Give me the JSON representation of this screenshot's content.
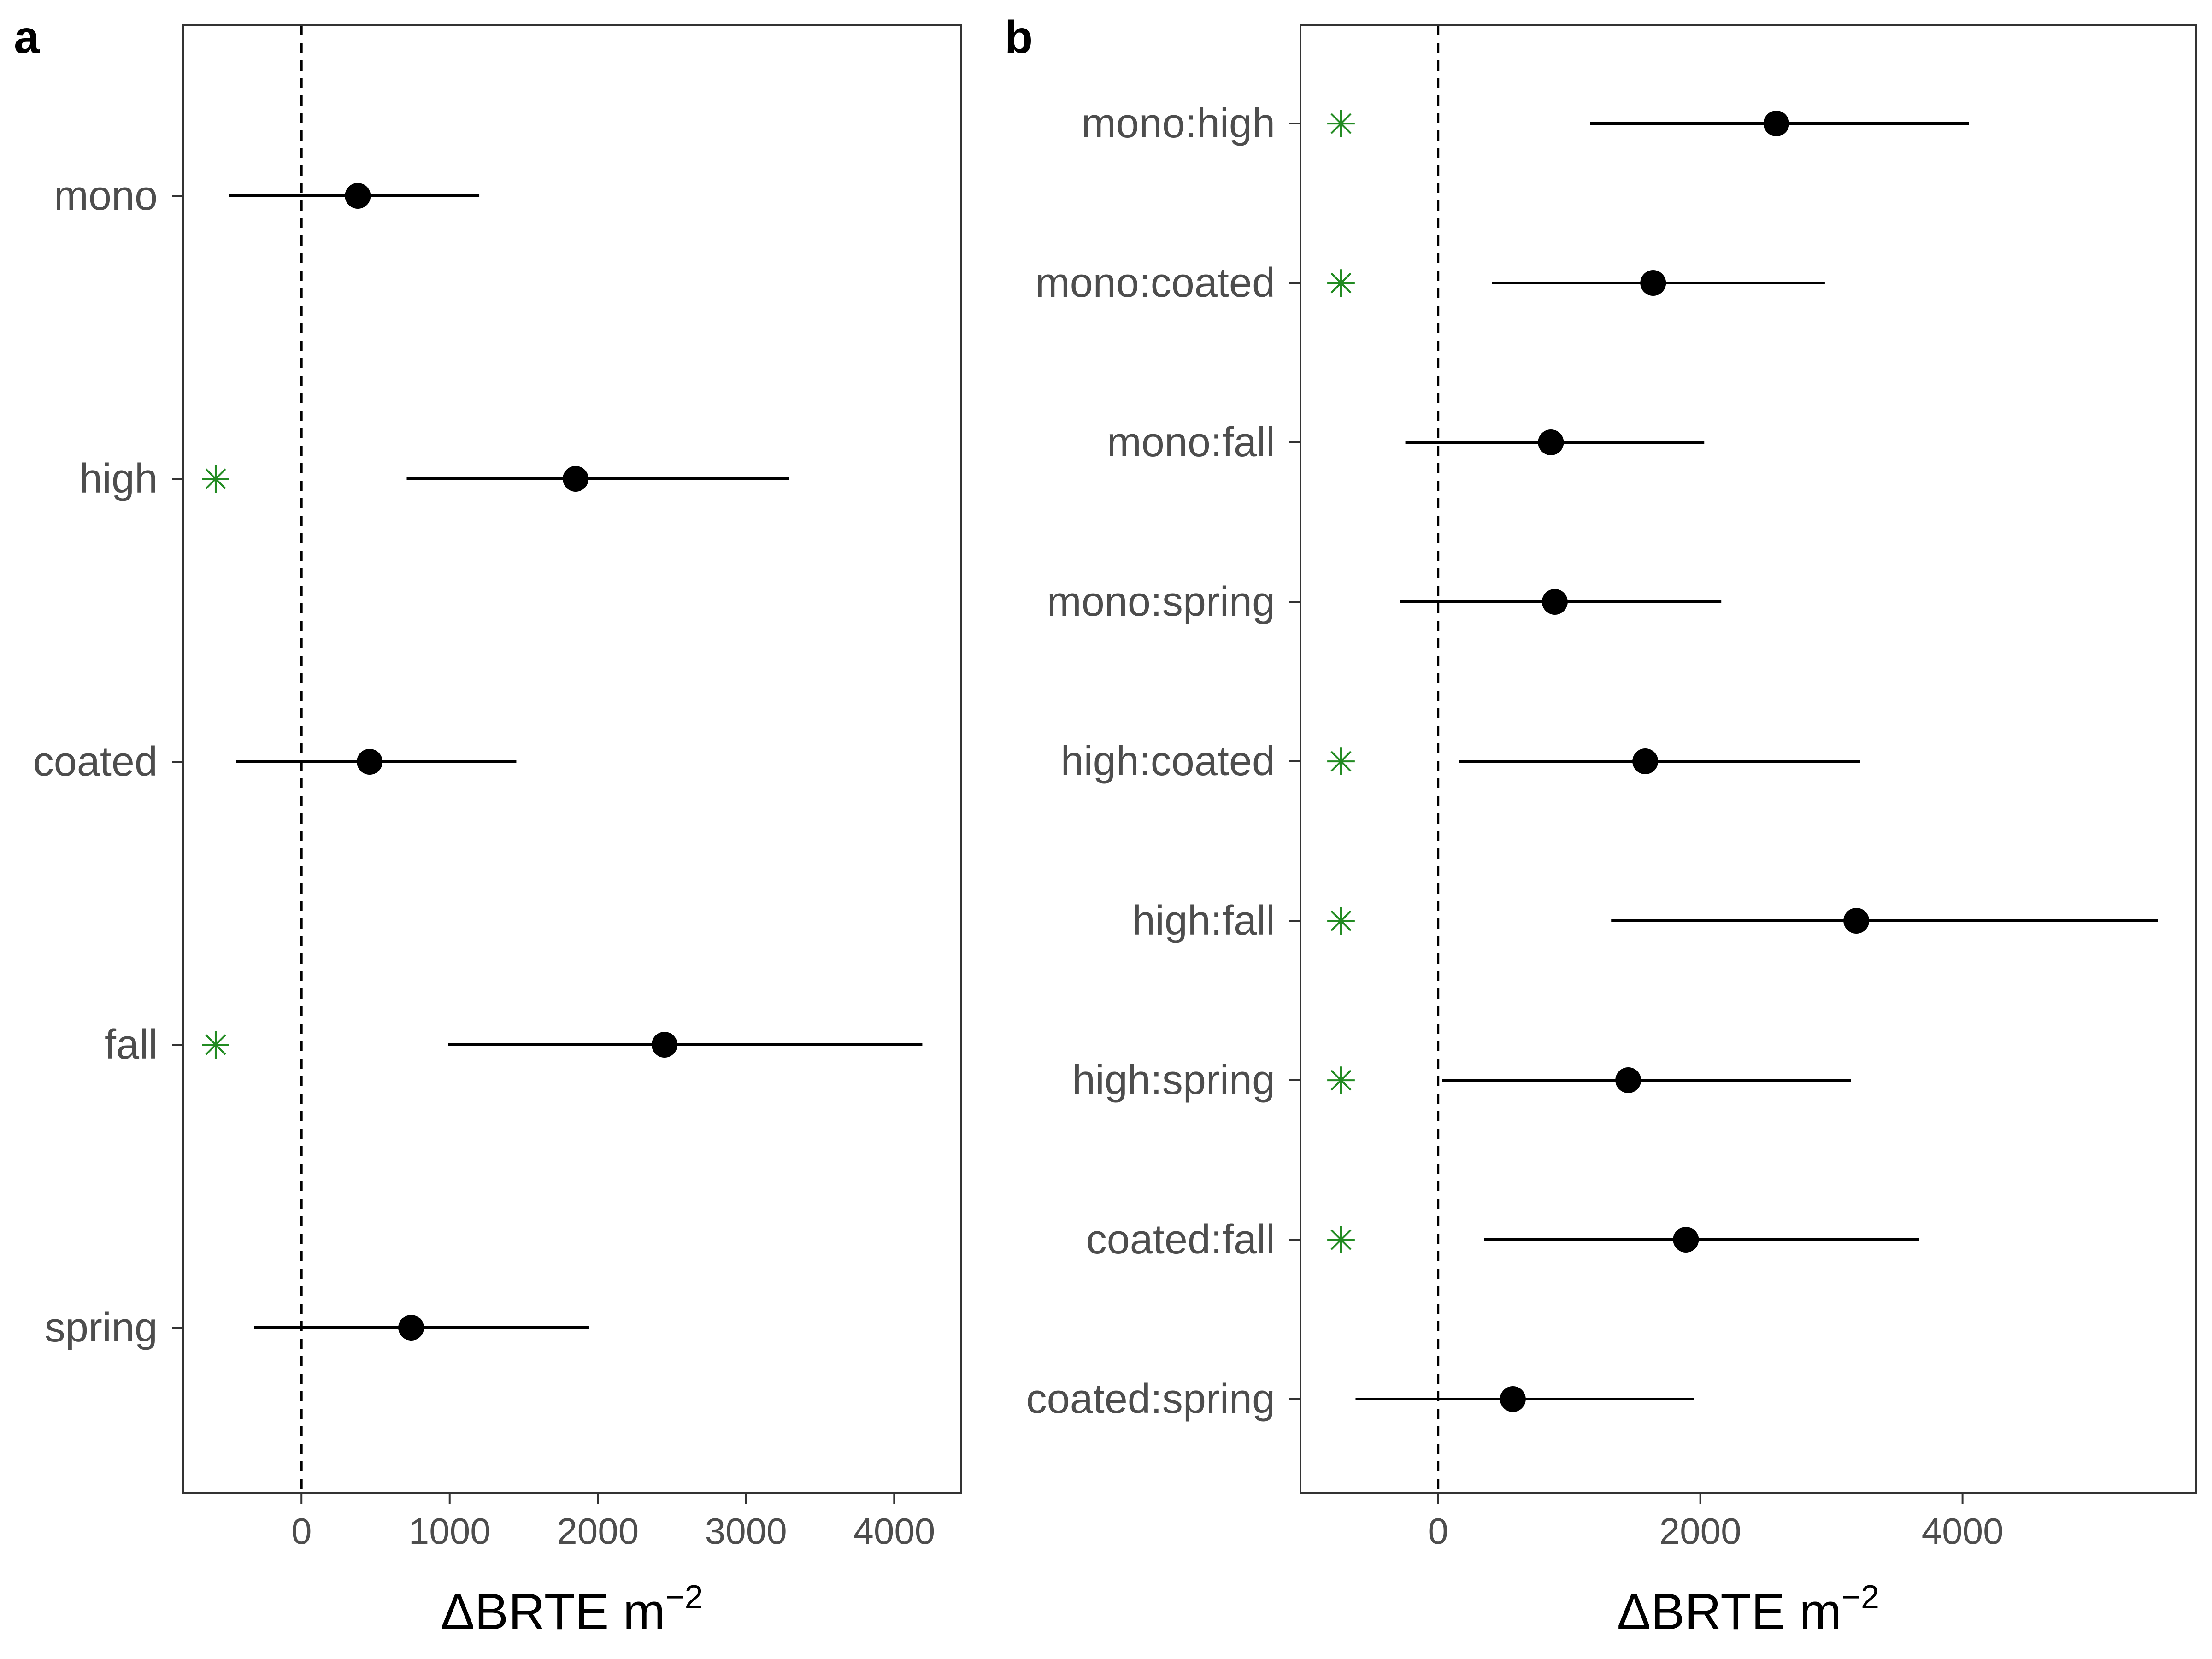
{
  "figure": {
    "background": "#ffffff",
    "point_color": "#000000",
    "marker_color": "#228B22",
    "marker_glyph": "✳"
  },
  "chart_data": [
    {
      "panel": "a",
      "type": "scatter",
      "style": "dot-and-whisker",
      "xlabel": "ΔBRTE m",
      "xlabel_superscript": "−2",
      "xlim": [
        -800,
        4450
      ],
      "xticks": [
        0,
        1000,
        2000,
        3000,
        4000
      ],
      "xtick_labels": [
        "0",
        "1000",
        "2000",
        "3000",
        "4000"
      ],
      "reference_line": 0,
      "grid": false,
      "categories": [
        "mono",
        "high",
        "coated",
        "fall",
        "spring"
      ],
      "estimates": [
        {
          "label": "mono",
          "value": 380,
          "lower": -490,
          "upper": 1200,
          "significant": false
        },
        {
          "label": "high",
          "value": 1850,
          "lower": 710,
          "upper": 3290,
          "significant": true
        },
        {
          "label": "coated",
          "value": 460,
          "lower": -440,
          "upper": 1450,
          "significant": false
        },
        {
          "label": "fall",
          "value": 2450,
          "lower": 990,
          "upper": 4190,
          "significant": true
        },
        {
          "label": "spring",
          "value": 740,
          "lower": -320,
          "upper": 1940,
          "significant": false
        }
      ]
    },
    {
      "panel": "b",
      "type": "scatter",
      "style": "dot-and-whisker",
      "xlabel": "ΔBRTE m",
      "xlabel_superscript": "−2",
      "xlim": [
        -1050,
        5780
      ],
      "xticks": [
        0,
        2000,
        4000
      ],
      "xtick_labels": [
        "0",
        "2000",
        "4000"
      ],
      "reference_line": 0,
      "grid": false,
      "categories": [
        "mono:high",
        "mono:coated",
        "mono:fall",
        "mono:spring",
        "high:coated",
        "high:fall",
        "high:spring",
        "coated:fall",
        "coated:spring"
      ],
      "estimates": [
        {
          "label": "mono:high",
          "value": 2580,
          "lower": 1160,
          "upper": 4050,
          "significant": true
        },
        {
          "label": "mono:coated",
          "value": 1640,
          "lower": 410,
          "upper": 2950,
          "significant": true
        },
        {
          "label": "mono:fall",
          "value": 860,
          "lower": -250,
          "upper": 2030,
          "significant": false
        },
        {
          "label": "mono:spring",
          "value": 890,
          "lower": -290,
          "upper": 2160,
          "significant": false
        },
        {
          "label": "high:coated",
          "value": 1580,
          "lower": 160,
          "upper": 3220,
          "significant": true
        },
        {
          "label": "high:fall",
          "value": 3190,
          "lower": 1320,
          "upper": 5490,
          "significant": true
        },
        {
          "label": "high:spring",
          "value": 1450,
          "lower": 30,
          "upper": 3150,
          "significant": true
        },
        {
          "label": "coated:fall",
          "value": 1890,
          "lower": 350,
          "upper": 3670,
          "significant": true
        },
        {
          "label": "coated:spring",
          "value": 570,
          "lower": -630,
          "upper": 1950,
          "significant": false
        }
      ]
    }
  ]
}
